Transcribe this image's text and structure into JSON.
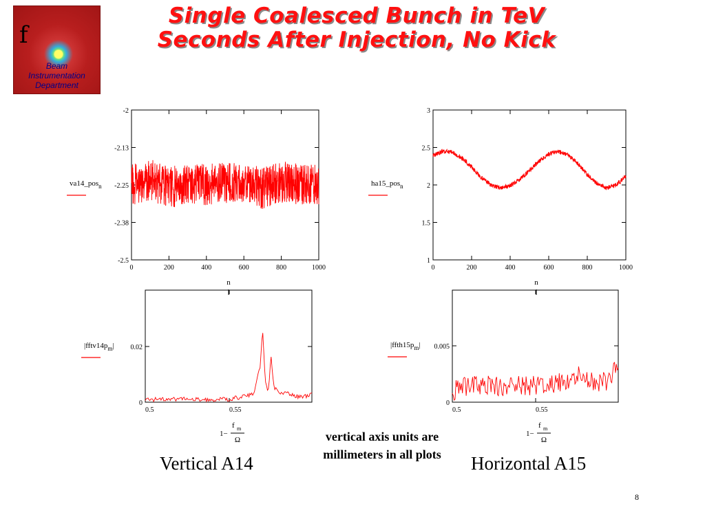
{
  "logo": {
    "letter": "f",
    "lines": [
      "Beam",
      "Instrumentation",
      "Department"
    ]
  },
  "title": {
    "line1": "Single Coalesced Bunch in TeV",
    "line2": "Seconds After Injection, No Kick"
  },
  "note": "vertical axis units are millimeters in all plots",
  "captions": {
    "left": "Vertical A14",
    "right": "Horizontal A15"
  },
  "page_number": "8",
  "colors": {
    "title": "#ff1010",
    "series": "#ff0000",
    "axis": "#000000"
  },
  "chart_data": [
    {
      "type": "line",
      "ylabel": "va14_pos",
      "ylabel_sub": "n",
      "xlabel": "n",
      "xlim": [
        0,
        1000
      ],
      "ylim": [
        -2.5,
        -2
      ],
      "xticks": [
        "0",
        "200",
        "400",
        "600",
        "800",
        "1000"
      ],
      "yticks": [
        "-2",
        "-2.13",
        "-2.25",
        "-2.38",
        "-2.5"
      ],
      "series": [
        {
          "x": [
            0,
            100,
            200,
            300,
            400,
            500,
            600,
            700,
            800,
            900,
            1000
          ],
          "values": [
            -2.25,
            -2.23,
            -2.26,
            -2.24,
            -2.25,
            -2.24,
            -2.25,
            -2.26,
            -2.24,
            -2.25,
            -2.25
          ],
          "noise_amplitude": 0.07
        }
      ]
    },
    {
      "type": "line",
      "ylabel": "ha15_pos",
      "ylabel_sub": "n",
      "xlabel": "n",
      "xlim": [
        0,
        1000
      ],
      "ylim": [
        1,
        3
      ],
      "xticks": [
        "0",
        "200",
        "400",
        "600",
        "800",
        "1000"
      ],
      "yticks": [
        "3",
        "2.5",
        "2",
        "1.5",
        "1"
      ],
      "series": [
        {
          "x": [
            0,
            50,
            100,
            150,
            200,
            250,
            300,
            350,
            400,
            450,
            500,
            550,
            600,
            650,
            700,
            750,
            800,
            850,
            900,
            950,
            1000
          ],
          "values": [
            2.39,
            2.45,
            2.44,
            2.36,
            2.24,
            2.1,
            2.0,
            1.96,
            1.99,
            2.08,
            2.19,
            2.32,
            2.41,
            2.45,
            2.4,
            2.29,
            2.14,
            2.02,
            1.96,
            2.0,
            2.12
          ],
          "noise_amplitude": 0.03
        }
      ]
    },
    {
      "type": "line",
      "ylabel": "fftv14p",
      "ylabel_sub": "m",
      "xlabel": "1−f_m/Ω",
      "xlim": [
        0.5,
        0.6
      ],
      "ylim": [
        0,
        0.04
      ],
      "xticks": [
        "0.5",
        "0.55"
      ],
      "yticks": [
        "0.02",
        "0"
      ],
      "series": [
        {
          "x": [
            0.5,
            0.51,
            0.52,
            0.53,
            0.54,
            0.55,
            0.555,
            0.56,
            0.565,
            0.567,
            0.569,
            0.5705,
            0.572,
            0.574,
            0.5755,
            0.577,
            0.579,
            0.582,
            0.586,
            0.59,
            0.594,
            0.598,
            0.6
          ],
          "values": [
            0.001,
            0.001,
            0.001,
            0.001,
            0.001,
            0.001,
            0.0015,
            0.002,
            0.003,
            0.008,
            0.013,
            0.026,
            0.007,
            0.004,
            0.017,
            0.006,
            0.004,
            0.003,
            0.003,
            0.002,
            0.002,
            0.002,
            0.003
          ],
          "noise_amplitude": 0.0008
        }
      ]
    },
    {
      "type": "line",
      "ylabel": "ffth15p",
      "ylabel_sub": "m",
      "xlabel": "1−f_m/Ω",
      "xlim": [
        0.5,
        0.6
      ],
      "ylim": [
        0,
        0.01
      ],
      "xticks": [
        "0.5",
        "0.55"
      ],
      "yticks": [
        "0.005",
        "0"
      ],
      "series": [
        {
          "x": [
            0.5,
            0.51,
            0.52,
            0.53,
            0.54,
            0.55,
            0.56,
            0.57,
            0.575,
            0.58,
            0.59,
            0.595,
            0.6
          ],
          "values": [
            0.001,
            0.0015,
            0.0015,
            0.0014,
            0.0015,
            0.0015,
            0.0017,
            0.0018,
            0.0027,
            0.0018,
            0.0018,
            0.002,
            0.0033
          ],
          "noise_amplitude": 0.0009
        }
      ]
    }
  ]
}
